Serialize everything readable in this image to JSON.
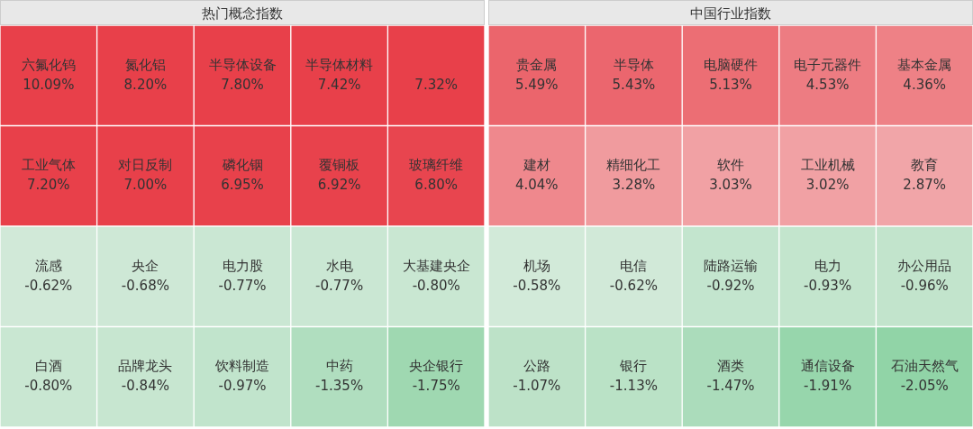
{
  "chart_data": [
    {
      "type": "other",
      "title": "热门概念指数",
      "categories": [
        "六氟化钨",
        "氮化铝",
        "半导体设备",
        "半导体材料",
        null,
        "工业气体",
        "对日反制",
        "磷化铟",
        "覆铜板",
        "玻璃纤维",
        "流感",
        "央企",
        "电力股",
        "水电",
        "大基建央企",
        "白酒",
        "品牌龙头",
        "饮料制造",
        "中药",
        "央企银行"
      ],
      "values": [
        10.09,
        8.2,
        7.8,
        7.42,
        7.32,
        7.2,
        7.0,
        6.95,
        6.92,
        6.8,
        -0.62,
        -0.68,
        -0.77,
        -0.77,
        -0.8,
        -0.8,
        -0.84,
        -0.97,
        -1.35,
        -1.75
      ],
      "value_labels": [
        "10.09%",
        "8.20%",
        "7.80%",
        "7.42%",
        "7.32%",
        "7.20%",
        "7.00%",
        "6.95%",
        "6.92%",
        "6.80%",
        "-0.62%",
        "-0.68%",
        "-0.77%",
        "-0.77%",
        "-0.80%",
        "-0.80%",
        "-0.84%",
        "-0.97%",
        "-1.35%",
        "-1.75%"
      ]
    },
    {
      "type": "other",
      "title": "中国行业指数",
      "categories": [
        "贵金属",
        "半导体",
        "电脑硬件",
        "电子元器件",
        "基本金属",
        "建材",
        "精细化工",
        "软件",
        "工业机械",
        "教育",
        "机场",
        "电信",
        "陆路运输",
        "电力",
        "办公用品",
        "公路",
        "银行",
        "酒类",
        "通信设备",
        "石油天然气"
      ],
      "values": [
        5.49,
        5.43,
        5.13,
        4.53,
        4.36,
        4.04,
        3.28,
        3.03,
        3.02,
        2.87,
        -0.58,
        -0.62,
        -0.92,
        -0.93,
        -0.96,
        -1.07,
        -1.13,
        -1.47,
        -1.91,
        -2.05
      ],
      "value_labels": [
        "5.49%",
        "5.43%",
        "5.13%",
        "4.53%",
        "4.36%",
        "4.04%",
        "3.28%",
        "3.03%",
        "3.02%",
        "2.87%",
        "-0.58%",
        "-0.62%",
        "-0.92%",
        "-0.93%",
        "-0.96%",
        "-1.07%",
        "-1.13%",
        "-1.47%",
        "-1.91%",
        "-2.05%"
      ]
    }
  ]
}
